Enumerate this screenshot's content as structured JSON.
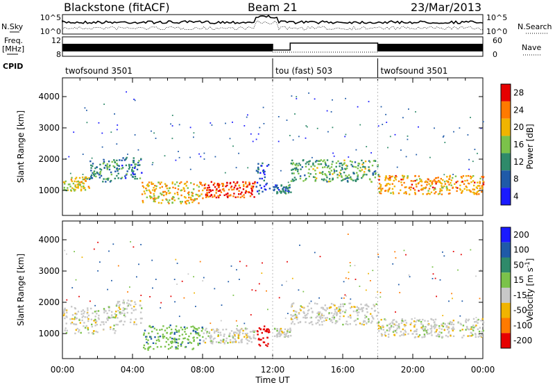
{
  "header": {
    "station": "Blackstone (fitACF)",
    "beam": "Beam 21",
    "date": "23/Mar/2013"
  },
  "noise_panel": {
    "left_label": "N.Sky",
    "right_label": "N.Search",
    "left_ticks": [
      "10^5",
      "10^0"
    ],
    "right_ticks": [
      "10^5",
      "10^0"
    ]
  },
  "freq_panel": {
    "left_label_line1": "Freq.",
    "left_label_line2": "[MHz]",
    "left_ticks": [
      "12",
      "8"
    ],
    "right_label": "Nave",
    "right_ticks": [
      "60",
      "0"
    ]
  },
  "cpid": {
    "label": "CPID",
    "segments": [
      {
        "name": "twofsound 3501",
        "start_hour": 0
      },
      {
        "name": "tou (fast) 503",
        "start_hour": 12
      },
      {
        "name": "twofsound 3501",
        "start_hour": 18
      }
    ]
  },
  "chart_data": [
    {
      "type": "heatmap",
      "title": "",
      "ylabel": "Slant Range [km]",
      "xlabel": "Time UT",
      "xlim_hours": [
        0,
        24
      ],
      "ylim_km": [
        200,
        4600
      ],
      "yticks": [
        "1000",
        "2000",
        "3000",
        "4000"
      ],
      "colorbar": {
        "label": "Power [dB]",
        "ticks": [
          "4",
          "8",
          "12",
          "16",
          "20",
          "24",
          "28"
        ],
        "colors": [
          "#1a1aff",
          "#1f5aa8",
          "#2f8a6a",
          "#7bc24a",
          "#f0b400",
          "#ff7a00",
          "#e60000"
        ]
      },
      "echo_bands": [
        {
          "hours": [
            0,
            1.5
          ],
          "range_km": [
            1000,
            1500
          ],
          "power_db": 18
        },
        {
          "hours": [
            1.5,
            3
          ],
          "range_km": [
            1300,
            2000
          ],
          "power_db": 12
        },
        {
          "hours": [
            3,
            4.5
          ],
          "range_km": [
            1400,
            2100
          ],
          "power_db": 10
        },
        {
          "hours": [
            4.5,
            8
          ],
          "range_km": [
            600,
            1300
          ],
          "power_db": 20
        },
        {
          "hours": [
            8,
            11
          ],
          "range_km": [
            800,
            1300
          ],
          "power_db": 26
        },
        {
          "hours": [
            11,
            11.8
          ],
          "range_km": [
            900,
            1900
          ],
          "power_db": 8
        },
        {
          "hours": [
            12,
            13
          ],
          "range_km": [
            900,
            1200
          ],
          "power_db": 10
        },
        {
          "hours": [
            13,
            18
          ],
          "range_km": [
            1300,
            2000
          ],
          "power_db": 14
        },
        {
          "hours": [
            18,
            24
          ],
          "range_km": [
            900,
            1500
          ],
          "power_db": 22
        }
      ]
    },
    {
      "type": "heatmap",
      "title": "",
      "ylabel": "Slant Range [km]",
      "xlabel": "Time UT",
      "xlim_hours": [
        0,
        24
      ],
      "ylim_km": [
        200,
        4600
      ],
      "yticks": [
        "1000",
        "2000",
        "3000",
        "4000"
      ],
      "xticks": [
        "00:00",
        "04:00",
        "08:00",
        "12:00",
        "16:00",
        "20:00",
        "00:00"
      ],
      "colorbar": {
        "label": "Velocity [m s^-1]",
        "ticks": [
          "200",
          "100",
          "50",
          "15",
          "-15",
          "-50",
          "-100",
          "-200"
        ],
        "colors": [
          "#1a1aff",
          "#1f5aa8",
          "#2f8a6a",
          "#7bc24a",
          "#c8c8c8",
          "#f0b400",
          "#ff7a00",
          "#e60000"
        ]
      },
      "echo_bands": [
        {
          "hours": [
            0,
            3
          ],
          "range_km": [
            1000,
            1900
          ],
          "velocity": 0
        },
        {
          "hours": [
            3,
            4.5
          ],
          "range_km": [
            1300,
            2100
          ],
          "velocity": 0
        },
        {
          "hours": [
            4.5,
            8
          ],
          "range_km": [
            500,
            1300
          ],
          "velocity": 40
        },
        {
          "hours": [
            8,
            11
          ],
          "range_km": [
            700,
            1200
          ],
          "velocity": 0
        },
        {
          "hours": [
            11,
            11.8
          ],
          "range_km": [
            600,
            1300
          ],
          "velocity": -120
        },
        {
          "hours": [
            12,
            13
          ],
          "range_km": [
            900,
            1200
          ],
          "velocity": 0
        },
        {
          "hours": [
            13,
            18
          ],
          "range_km": [
            1300,
            2000
          ],
          "velocity": 0
        },
        {
          "hours": [
            18,
            24
          ],
          "range_km": [
            900,
            1500
          ],
          "velocity": 0
        }
      ]
    }
  ]
}
